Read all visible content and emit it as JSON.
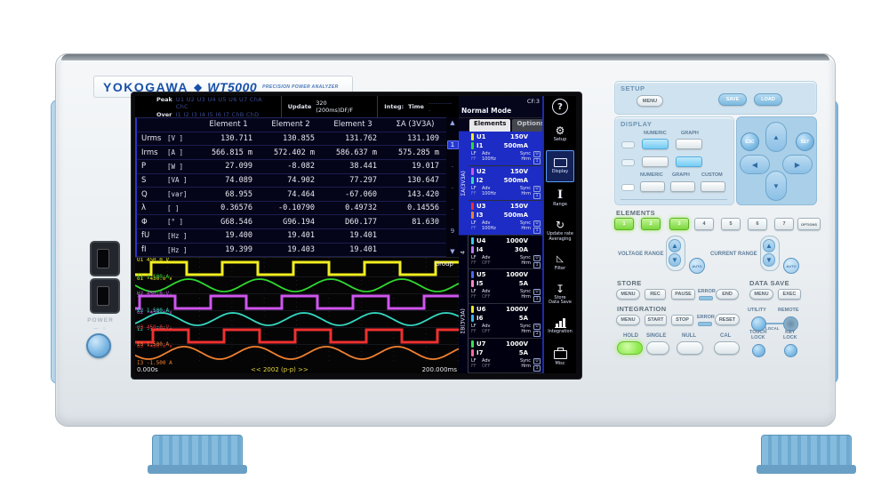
{
  "brand": {
    "logo": "YOKOGAWA",
    "diamond": "◆",
    "model": "WT5000",
    "tagline": "PRECISION POWER ANALYZER"
  },
  "left_panel": {
    "power_label": "POWER"
  },
  "screen": {
    "status": {
      "peak_label": "Peak",
      "over_label": "Over",
      "peak_channels": "U1 U2 U3 U4 U5 U6 U7 ChA ChC",
      "over_channels": "I1 I2 I3 I4 I5 I6 I7 ChB ChD",
      "update_label": "Update",
      "update_value": "320 (200ms)DF/F",
      "integ_label": "Integ:",
      "time_label": "Time",
      "time_value": "-----------",
      "mode": "Normal Mode",
      "crest_factor": "CF:3",
      "help": "?"
    },
    "table": {
      "headers": [
        "Element 1",
        "Element 2",
        "Element 3",
        "ΣA (3V3A)"
      ],
      "rows": [
        {
          "name": "Urms",
          "unit": "[V  ]",
          "values": [
            "130.711",
            "130.855",
            "131.762",
            "131.109"
          ]
        },
        {
          "name": "Irms",
          "unit": "[A  ]",
          "values": [
            "566.815 m",
            "572.402 m",
            "586.637 m",
            "575.285 m"
          ]
        },
        {
          "name": "P",
          "unit": "[W  ]",
          "values": [
            "27.099",
            "-8.082",
            "38.441",
            "19.017"
          ]
        },
        {
          "name": "S",
          "unit": "[VA ]",
          "values": [
            "74.089",
            "74.902",
            "77.297",
            "130.647"
          ]
        },
        {
          "name": "Q",
          "unit": "[var]",
          "values": [
            "68.955",
            "74.464",
            "-67.060",
            "143.420"
          ]
        },
        {
          "name": "λ",
          "unit": "[   ]",
          "values": [
            "0.36576",
            "-0.10790",
            "0.49732",
            "0.14556"
          ]
        },
        {
          "name": "Φ",
          "unit": "[°  ]",
          "values": [
            "G68.546",
            "G96.194",
            "D60.177",
            "81.630"
          ]
        },
        {
          "name": "fU",
          "unit": "[Hz ]",
          "values": [
            "19.400",
            "19.401",
            "19.401",
            ""
          ]
        },
        {
          "name": "fI",
          "unit": "[Hz ]",
          "values": [
            "19.399",
            "19.403",
            "19.401",
            ""
          ]
        }
      ]
    },
    "pager": {
      "items": [
        "▲",
        "1",
        "·",
        "·",
        "·",
        "9",
        "▼"
      ],
      "active_index": 1
    },
    "waveform": {
      "group_label": "Group",
      "time_start": "0.000s",
      "time_end": "200.000ms",
      "pp_note": "<< 2002 (p-p) >>",
      "traces": [
        {
          "ch": "U1",
          "top_label": "450.0 V",
          "bottom_label": "-450.0 V",
          "color": "#f2ee20",
          "shape": "square",
          "phase": -1.41
        },
        {
          "ch": "I1",
          "top_label": "1.500 A",
          "bottom_label": "-1.500 A",
          "color": "#30d830",
          "shape": "sine",
          "phase": 3.14
        },
        {
          "ch": "U2",
          "top_label": "450.0 V",
          "bottom_label": "-450.0 V",
          "color": "#d055f0",
          "shape": "square",
          "phase": -0.39
        },
        {
          "ch": "I2",
          "top_label": "1.500 A",
          "bottom_label": "-1.500 A",
          "color": "#35d8c0",
          "shape": "sine",
          "phase": -0.78
        },
        {
          "ch": "U3",
          "top_label": "450.0 V",
          "bottom_label": "-450.0 V",
          "color": "#f03030",
          "shape": "square",
          "phase": -1.57
        },
        {
          "ch": "I3",
          "top_label": "1.500 A",
          "bottom_label": "-1.500 A",
          "color": "#f08030",
          "shape": "sine",
          "phase": -2.75
        }
      ]
    },
    "sidebar": {
      "tabs": [
        {
          "label": "Elements",
          "active": true
        },
        {
          "label": "Options",
          "active": false
        }
      ],
      "groups": [
        {
          "label": "ΣA(3V3A)",
          "span": 3,
          "highlight": true
        },
        {
          "label": "4",
          "span": 1,
          "highlight": false
        },
        {
          "label": "ΣB(3V3A)",
          "span": 3,
          "highlight": false
        }
      ],
      "elements": [
        {
          "u": "U1",
          "u_range": "150V",
          "u_color": "#f2ee20",
          "i": "I1",
          "i_range": "500mA",
          "i_color": "#30d830",
          "freq": "100Hz",
          "highlight": true
        },
        {
          "u": "U2",
          "u_range": "150V",
          "u_color": "#d055f0",
          "i": "I2",
          "i_range": "500mA",
          "i_color": "#35d8c0",
          "freq": "100Hz",
          "highlight": true
        },
        {
          "u": "U3",
          "u_range": "150V",
          "u_color": "#f03030",
          "i": "I3",
          "i_range": "500mA",
          "i_color": "#f08030",
          "freq": "100Hz",
          "highlight": true
        },
        {
          "u": "U4",
          "u_range": "1000V",
          "u_color": "#38c8f0",
          "i": "I4",
          "i_range": "30A",
          "i_color": "#b878f8",
          "freq": "OFF",
          "highlight": false
        },
        {
          "u": "U5",
          "u_range": "1000V",
          "u_color": "#4868f8",
          "i": "I5",
          "i_range": "5A",
          "i_color": "#f888c8",
          "freq": "OFF",
          "highlight": false
        },
        {
          "u": "U6",
          "u_range": "1000V",
          "u_color": "#e8e830",
          "i": "I6",
          "i_range": "5A",
          "i_color": "#38b8f0",
          "freq": "OFF",
          "highlight": false
        },
        {
          "u": "U7",
          "u_range": "1000V",
          "u_color": "#38e058",
          "i": "I7",
          "i_range": "5A",
          "i_color": "#f86898",
          "freq": "OFF",
          "highlight": false
        }
      ],
      "sub_labels": {
        "lf": "LF",
        "ff": "FF",
        "adv": "Adv",
        "sync": "Sync",
        "hrm": "Hrm",
        "badge_u": "U",
        "badge_1": "1"
      }
    },
    "rail": [
      {
        "name": "setup",
        "icon": "gear",
        "label": "Setup",
        "active": false
      },
      {
        "name": "display",
        "icon": "display",
        "label": "Display",
        "active": true
      },
      {
        "name": "range",
        "icon": "range",
        "label": "Range",
        "active": false
      },
      {
        "name": "update-rate",
        "icon": "refresh",
        "label": "Update rate\nAveraging",
        "active": false
      },
      {
        "name": "filter",
        "icon": "filter",
        "label": "Filter",
        "active": false
      },
      {
        "name": "store",
        "icon": "store",
        "label": "Store\nData Save",
        "active": false
      },
      {
        "name": "integration",
        "icon": "integration",
        "label": "Integration",
        "active": false
      },
      {
        "name": "misc",
        "icon": "misc",
        "label": "Misc",
        "active": false
      }
    ]
  },
  "panel": {
    "setup": {
      "title": "SETUP",
      "menu": "MENU",
      "save": "SAVE",
      "load": "LOAD"
    },
    "display": {
      "title": "DISPLAY",
      "top_labels": [
        "NUMERIC",
        "GRAPH"
      ],
      "bottom_labels": [
        "NUMERIC",
        "GRAPH",
        "CUSTOM"
      ]
    },
    "keypad": {
      "esc": "ESC",
      "set": "SET"
    },
    "elements": {
      "title": "ELEMENTS",
      "buttons": [
        "1",
        "2",
        "3",
        "4",
        "5",
        "6",
        "7"
      ],
      "options_label": "OPTIONS",
      "active_count": 3
    },
    "ranges": {
      "voltage": "VOLTAGE RANGE",
      "current": "CURRENT RANGE",
      "auto": "AUTO"
    },
    "store": {
      "title": "STORE",
      "menu": "MENU",
      "rec": "REC",
      "pause": "PAUSE",
      "error": "ERROR",
      "end": "END"
    },
    "data_save": {
      "title": "DATA SAVE",
      "menu": "MENU",
      "exec": "EXEC"
    },
    "integration": {
      "title": "INTEGRATION",
      "menu": "MENU",
      "start": "START",
      "stop": "STOP",
      "error": "ERROR",
      "reset": "RESET"
    },
    "utility": {
      "utility": "UTILITY",
      "remote": "REMOTE",
      "local": "LOCAL"
    },
    "bottom": {
      "hold": "HOLD",
      "single": "SINGLE",
      "null": "NULL",
      "cal": "CAL",
      "touch_lock": "TOUCH\nLOCK",
      "key_lock": "KEY\nLOCK"
    }
  }
}
